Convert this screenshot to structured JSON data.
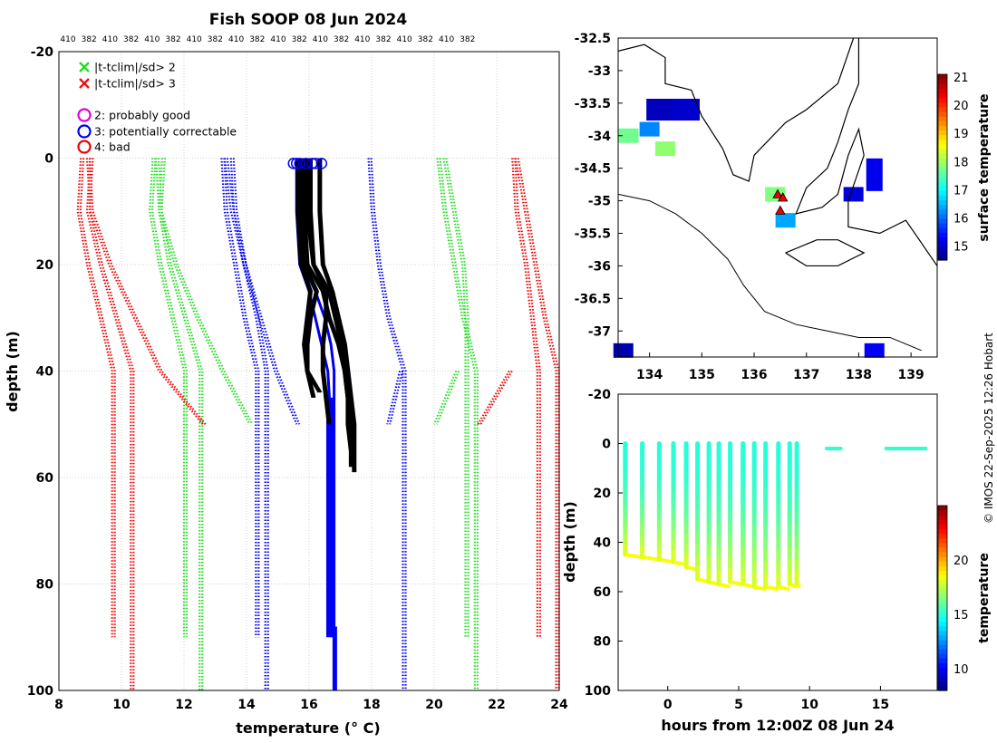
{
  "title": "Fish SOOP 08 Jun 2024",
  "credit": "© IMOS 22-Sep-2025 12:26 Hobart",
  "chart_data": [
    {
      "type": "line",
      "name": "temperature-profiles",
      "xlabel": "temperature (° C)",
      "ylabel": "depth (m)",
      "xlim": [
        8,
        24
      ],
      "ylim": [
        -20,
        100
      ],
      "xticks": [
        8,
        10,
        12,
        14,
        16,
        18,
        20,
        22,
        24
      ],
      "yticks": [
        -20,
        0,
        20,
        40,
        60,
        80,
        100
      ],
      "grid": true,
      "top_labels": [
        "410",
        "382",
        "410",
        "382",
        "410",
        "382",
        "410",
        "382",
        "410",
        "382",
        "410",
        "382",
        "410",
        "382",
        "410",
        "382",
        "410",
        "382",
        "410",
        "382"
      ],
      "legend": {
        "placement": "top-left",
        "entries": [
          {
            "label": "|t-tclim|/sd> 2",
            "marker": "x",
            "color": "#22dd22"
          },
          {
            "label": "|t-tclim|/sd> 3",
            "marker": "x",
            "color": "#ee1111"
          },
          {
            "label": "2: probably good",
            "marker": "o",
            "color": "#dd00dd"
          },
          {
            "label": "3: potentially correctable",
            "marker": "o",
            "color": "#0000ee"
          },
          {
            "label": "4: bad",
            "marker": "o",
            "color": "#ee0000"
          }
        ]
      },
      "climatology_bounds": [
        {
          "name": "lower-3sd",
          "color": "#ee0000",
          "depth": [
            0,
            10,
            20,
            30,
            40,
            90
          ],
          "temp": [
            8.7,
            8.6,
            8.9,
            9.3,
            9.7,
            9.7
          ]
        },
        {
          "name": "lower-3sd-b",
          "color": "#ee0000",
          "depth": [
            0,
            10,
            20,
            30,
            40,
            100
          ],
          "temp": [
            9.0,
            8.9,
            9.3,
            9.8,
            10.3,
            10.3
          ]
        },
        {
          "name": "lower-2sd",
          "color": "#22dd22",
          "depth": [
            0,
            10,
            20,
            30,
            40,
            90
          ],
          "temp": [
            11.0,
            10.9,
            11.2,
            11.6,
            12.0,
            12.0
          ]
        },
        {
          "name": "lower-2sd-b",
          "color": "#22dd22",
          "depth": [
            0,
            10,
            20,
            30,
            40,
            100
          ],
          "temp": [
            11.3,
            11.2,
            11.5,
            12.0,
            12.5,
            12.5
          ]
        },
        {
          "name": "lower-1sd",
          "color": "#0000ee",
          "depth": [
            0,
            10,
            20,
            30,
            40,
            90
          ],
          "temp": [
            13.2,
            13.3,
            13.6,
            13.9,
            14.3,
            14.3
          ]
        },
        {
          "name": "lower-1sd-b",
          "color": "#0000ee",
          "depth": [
            0,
            10,
            20,
            30,
            40,
            100
          ],
          "temp": [
            13.5,
            13.6,
            13.9,
            14.3,
            14.6,
            14.6
          ]
        },
        {
          "name": "upper-1sd",
          "color": "#0000ee",
          "depth": [
            0,
            10,
            20,
            30,
            40,
            100
          ],
          "temp": [
            17.9,
            18.0,
            18.2,
            18.5,
            19.0,
            19.0
          ]
        },
        {
          "name": "upper-2sd",
          "color": "#22dd22",
          "depth": [
            0,
            10,
            20,
            30,
            40,
            100
          ],
          "temp": [
            20.1,
            20.3,
            20.6,
            20.9,
            21.3,
            21.3
          ]
        },
        {
          "name": "upper-2sd-b",
          "color": "#22dd22",
          "depth": [
            0,
            10,
            20,
            30,
            40,
            90
          ],
          "temp": [
            20.3,
            20.6,
            20.9,
            21.0,
            21.0,
            21.0
          ]
        },
        {
          "name": "upper-3sd",
          "color": "#ee0000",
          "depth": [
            0,
            10,
            20,
            30,
            40,
            90
          ],
          "temp": [
            22.5,
            22.6,
            22.9,
            23.1,
            23.3,
            23.3
          ]
        },
        {
          "name": "upper-3sd-b",
          "color": "#ee0000",
          "depth": [
            0,
            10,
            20,
            30,
            40,
            100
          ],
          "temp": [
            22.6,
            22.9,
            23.2,
            23.5,
            23.9,
            23.9
          ]
        },
        {
          "name": "shallow-lower-3sd",
          "color": "#ee0000",
          "depth": [
            0,
            10,
            20,
            30,
            40,
            50
          ],
          "temp": [
            8.9,
            9.0,
            9.6,
            10.4,
            11.2,
            12.6
          ]
        },
        {
          "name": "shallow-lower-2sd",
          "color": "#22dd22",
          "depth": [
            0,
            10,
            20,
            30,
            40,
            50
          ],
          "temp": [
            11.1,
            11.2,
            11.7,
            12.4,
            13.2,
            14.1
          ]
        },
        {
          "name": "shallow-lower-1sd",
          "color": "#0000ee",
          "depth": [
            0,
            10,
            20,
            30,
            40,
            50
          ],
          "temp": [
            13.3,
            13.5,
            13.9,
            14.4,
            14.9,
            15.6
          ]
        },
        {
          "name": "shallow-upper-1sd",
          "color": "#0000ee",
          "depth": [
            40,
            50
          ],
          "temp": [
            18.9,
            18.5
          ]
        },
        {
          "name": "shallow-upper-2sd",
          "color": "#22dd22",
          "depth": [
            40,
            50
          ],
          "temp": [
            20.7,
            20.0
          ]
        },
        {
          "name": "shallow-upper-3sd",
          "color": "#ee0000",
          "depth": [
            40,
            50
          ],
          "temp": [
            22.4,
            21.4
          ]
        }
      ],
      "profiles_black": [
        {
          "depth": [
            0,
            10,
            20,
            25,
            30,
            35,
            40,
            45
          ],
          "temp": [
            15.6,
            15.6,
            15.7,
            16.0,
            15.9,
            15.8,
            15.9,
            16.1
          ]
        },
        {
          "depth": [
            0,
            10,
            20,
            25,
            30,
            35,
            40,
            45,
            50,
            55,
            58
          ],
          "temp": [
            15.8,
            15.8,
            15.9,
            16.4,
            16.6,
            16.9,
            17.1,
            17.2,
            17.3,
            17.3,
            17.3
          ]
        },
        {
          "depth": [
            0,
            10,
            20,
            25,
            30,
            35,
            40,
            45,
            50,
            55
          ],
          "temp": [
            16.0,
            16.0,
            16.1,
            16.6,
            16.8,
            17.0,
            17.1,
            17.2,
            17.2,
            17.3
          ]
        },
        {
          "depth": [
            0,
            10,
            20,
            25,
            30,
            35,
            40,
            44
          ],
          "temp": [
            15.7,
            15.7,
            15.8,
            16.2,
            16.0,
            15.9,
            15.9,
            16.3
          ]
        },
        {
          "depth": [
            0,
            10,
            20,
            25,
            30,
            35,
            40,
            45,
            50,
            55,
            59
          ],
          "temp": [
            16.3,
            16.3,
            16.4,
            16.7,
            16.9,
            17.1,
            17.2,
            17.3,
            17.4,
            17.4,
            17.4
          ]
        },
        {
          "depth": [
            0,
            10,
            20,
            25,
            30,
            35,
            40,
            45,
            50
          ],
          "temp": [
            15.9,
            15.9,
            16.1,
            16.5,
            16.5,
            16.4,
            16.4,
            16.5,
            16.6
          ]
        }
      ],
      "profiles_blue": [
        {
          "depth": [
            0,
            10,
            20,
            25,
            30,
            35,
            40,
            50,
            60,
            90
          ],
          "temp": [
            15.6,
            15.6,
            15.7,
            16.0,
            16.2,
            16.4,
            16.6,
            16.7,
            16.7,
            16.7
          ]
        },
        {
          "depth": [
            0,
            10,
            20,
            25,
            30,
            35,
            40,
            50,
            60,
            100
          ],
          "temp": [
            15.7,
            15.7,
            15.8,
            16.2,
            16.5,
            16.7,
            16.8,
            16.8,
            16.8,
            16.8
          ]
        }
      ],
      "flag_circles_depth0": [
        15.5,
        15.6,
        15.7,
        15.9,
        16.1,
        16.2,
        16.4
      ]
    },
    {
      "type": "heatmap",
      "name": "surface-temperature-map",
      "xlabel": "",
      "ylabel": "",
      "xlim": [
        133.4,
        139.5
      ],
      "ylim": [
        -37.4,
        -32.5
      ],
      "xticks": [
        134,
        135,
        136,
        137,
        138,
        139
      ],
      "yticks": [
        -32.5,
        -33,
        -33.5,
        -34,
        -34.5,
        -35,
        -35.5,
        -36,
        -36.5,
        -37
      ],
      "colorbar_label": "surface temperature",
      "colorbar_range": [
        14.5,
        21.1
      ],
      "colorbar_ticks": [
        15,
        16,
        17,
        18,
        19,
        20,
        21
      ],
      "sst_patches": [
        {
          "lon": 134.2,
          "lat": -33.6,
          "value": 14.9
        },
        {
          "lon": 134.7,
          "lat": -33.6,
          "value": 15.0
        },
        {
          "lon": 134.0,
          "lat": -33.9,
          "value": 16.2
        },
        {
          "lon": 133.6,
          "lat": -34.0,
          "value": 17.7
        },
        {
          "lon": 134.3,
          "lat": -34.2,
          "value": 17.9
        },
        {
          "lon": 136.4,
          "lat": -34.9,
          "value": 17.8
        },
        {
          "lon": 136.6,
          "lat": -35.3,
          "value": 16.4
        },
        {
          "lon": 137.9,
          "lat": -34.9,
          "value": 15.1
        },
        {
          "lon": 138.3,
          "lat": -34.6,
          "value": 15.2
        },
        {
          "lon": 138.3,
          "lat": -37.3,
          "value": 15.3
        },
        {
          "lon": 133.5,
          "lat": -37.3,
          "value": 14.8
        }
      ],
      "track_points": [
        {
          "lon": 136.45,
          "lat": -34.9
        },
        {
          "lon": 136.55,
          "lat": -34.95
        },
        {
          "lon": 136.5,
          "lat": -35.15
        }
      ]
    },
    {
      "type": "scatter",
      "name": "depth-time-section",
      "xlabel": "hours from 12:00Z 08 Jun 24",
      "ylabel": "depth (m)",
      "xlim": [
        -3.5,
        19
      ],
      "ylim": [
        -20,
        100
      ],
      "xticks": [
        0,
        5,
        10,
        15
      ],
      "yticks": [
        -20,
        0,
        20,
        40,
        60,
        80,
        100
      ],
      "colorbar_label": "temperature",
      "colorbar_range": [
        8,
        25
      ],
      "colorbar_ticks": [
        10,
        15,
        20
      ],
      "casts": [
        {
          "hour": -3.0,
          "max_depth": 45
        },
        {
          "hour": -1.8,
          "max_depth": 46
        },
        {
          "hour": -0.6,
          "max_depth": 47
        },
        {
          "hour": 0.4,
          "max_depth": 48
        },
        {
          "hour": 1.3,
          "max_depth": 50
        },
        {
          "hour": 2.1,
          "max_depth": 55
        },
        {
          "hour": 2.9,
          "max_depth": 56
        },
        {
          "hour": 3.6,
          "max_depth": 57
        },
        {
          "hour": 4.4,
          "max_depth": 56
        },
        {
          "hour": 5.3,
          "max_depth": 57
        },
        {
          "hour": 6.1,
          "max_depth": 58
        },
        {
          "hour": 6.9,
          "max_depth": 58
        },
        {
          "hour": 7.8,
          "max_depth": 58
        },
        {
          "hour": 8.6,
          "max_depth": 57
        },
        {
          "hour": 9.1,
          "max_depth": 57
        }
      ],
      "surface_segments": [
        {
          "from_hour": 11.2,
          "to_hour": 12.2,
          "depth": 2
        },
        {
          "from_hour": 15.4,
          "to_hour": 18.2,
          "depth": 2
        }
      ]
    }
  ]
}
